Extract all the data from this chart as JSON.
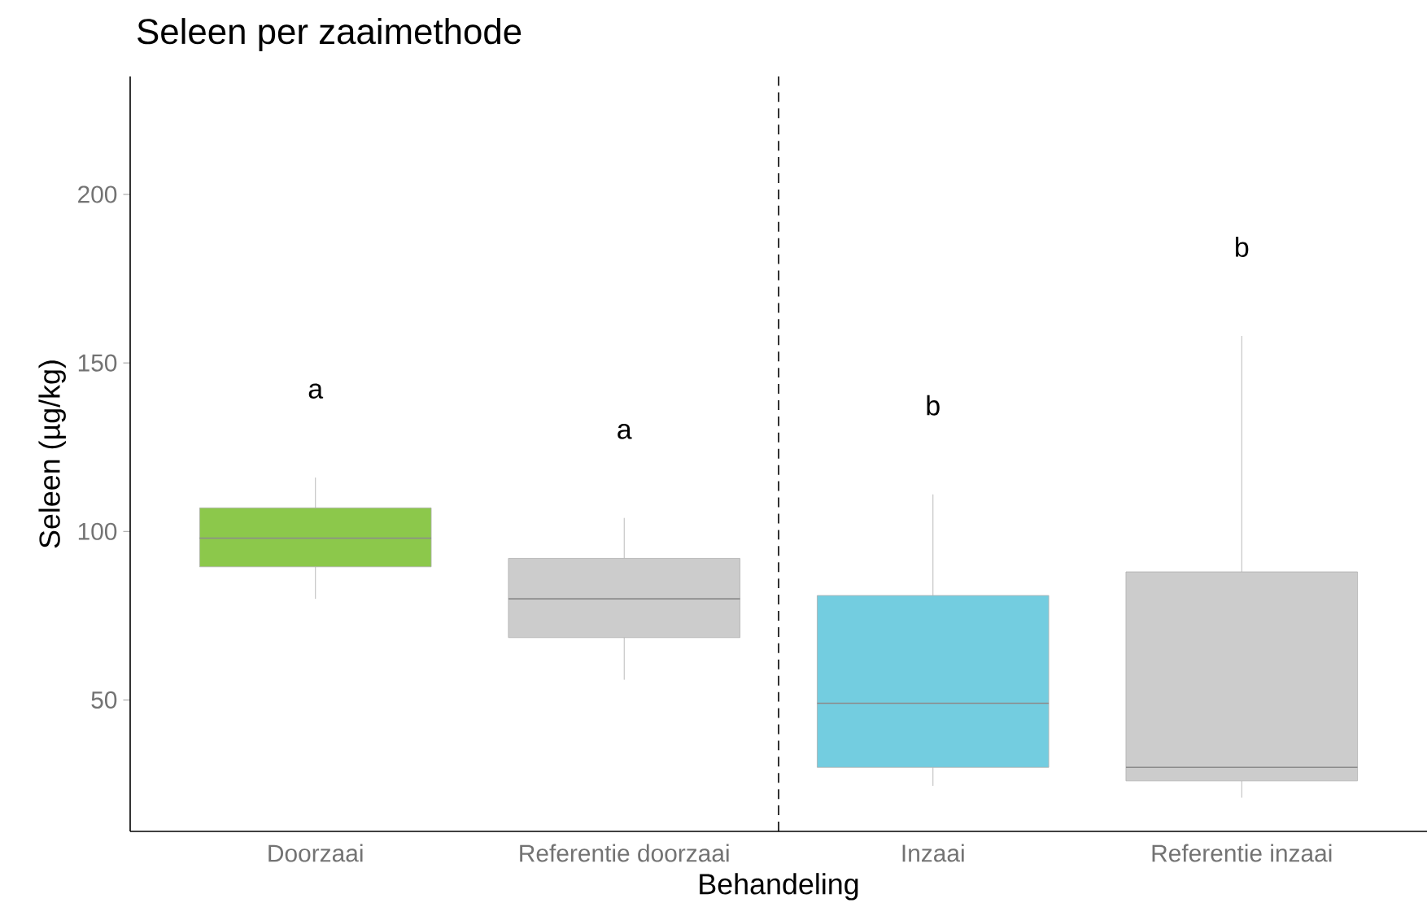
{
  "chart_data": {
    "type": "box",
    "title": "Seleen per zaaimethode",
    "xlabel": "Behandeling",
    "ylabel": "Seleen (µg/kg)",
    "categories": [
      "Doorzaai",
      "Referentie doorzaai",
      "Inzaai",
      "Referentie inzaai"
    ],
    "colors": [
      "#8cc84b",
      "#cccccc",
      "#73cde0",
      "#cccccc"
    ],
    "boxes": [
      {
        "low": 80,
        "q1": 89.5,
        "median": 98,
        "q3": 107,
        "high": 116
      },
      {
        "low": 56,
        "q1": 68.5,
        "median": 80,
        "q3": 92,
        "high": 104
      },
      {
        "low": 24.5,
        "q1": 30,
        "median": 49,
        "q3": 81,
        "high": 111
      },
      {
        "low": 21,
        "q1": 26,
        "median": 30,
        "q3": 88,
        "high": 158
      }
    ],
    "ylim": [
      11,
      235
    ],
    "yticks": [
      50,
      100,
      150,
      200
    ],
    "grid": false,
    "annotations": [
      "a",
      "a",
      "b",
      "b"
    ]
  }
}
